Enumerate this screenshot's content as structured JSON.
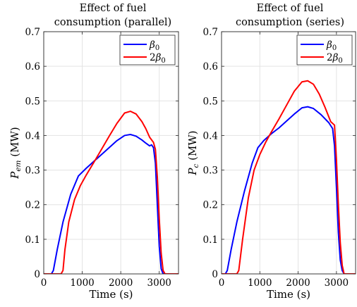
{
  "chart_data": [
    {
      "type": "line",
      "title_lines": [
        "Effect of fuel",
        "consumption (parallel)"
      ],
      "xlabel": "Time (s)",
      "ylabel_main": "P",
      "ylabel_sub": "em",
      "ylabel_unit": " (MW)",
      "xlim": [
        0,
        3500
      ],
      "ylim": [
        0,
        0.7
      ],
      "xticks": [
        0,
        1000,
        2000,
        3000
      ],
      "xtick_labels": [
        "0",
        "1000",
        "2000",
        "3000"
      ],
      "yticks": [
        0,
        0.1,
        0.2,
        0.3,
        0.4,
        0.5,
        0.6,
        0.7
      ],
      "ytick_labels": [
        "0",
        "0.1",
        "0.2",
        "0.3",
        "0.4",
        "0.5",
        "0.6",
        "0.7"
      ],
      "grid": true,
      "legend_position": "top-right",
      "series": [
        {
          "name_main": "β",
          "name_sub": "0",
          "color": "#0000ff",
          "x": [
            0,
            200,
            250,
            350,
            500,
            700,
            900,
            1100,
            1300,
            1500,
            1700,
            1900,
            2100,
            2250,
            2400,
            2550,
            2650,
            2750,
            2800,
            2850,
            2900,
            2950,
            3000,
            3050,
            3100,
            3150,
            3500
          ],
          "y": [
            0,
            0,
            0.01,
            0.07,
            0.15,
            0.23,
            0.283,
            0.305,
            0.325,
            0.345,
            0.365,
            0.385,
            0.4,
            0.403,
            0.398,
            0.387,
            0.378,
            0.37,
            0.373,
            0.365,
            0.32,
            0.2,
            0.08,
            0.015,
            0,
            0,
            0
          ]
        },
        {
          "name_main": "2β",
          "name_sub": "0",
          "color": "#ff0000",
          "x": [
            0,
            450,
            500,
            550,
            650,
            800,
            950,
            1100,
            1300,
            1500,
            1700,
            1900,
            2100,
            2250,
            2400,
            2550,
            2650,
            2750,
            2850,
            2900,
            2950,
            3000,
            3050,
            3100,
            3150,
            3500
          ],
          "y": [
            0,
            0,
            0.01,
            0.07,
            0.15,
            0.215,
            0.255,
            0.285,
            0.322,
            0.36,
            0.398,
            0.435,
            0.465,
            0.47,
            0.462,
            0.44,
            0.42,
            0.395,
            0.38,
            0.36,
            0.28,
            0.16,
            0.06,
            0.01,
            0,
            0
          ]
        }
      ]
    },
    {
      "type": "line",
      "title_lines": [
        "Effect of fuel",
        "consumption (series)"
      ],
      "xlabel": "Time (s)",
      "ylabel_main": "P",
      "ylabel_sub": "c",
      "ylabel_unit": " (MW)",
      "xlim": [
        0,
        3500
      ],
      "ylim": [
        0,
        0.7
      ],
      "xticks": [
        0,
        1000,
        2000,
        3000
      ],
      "xtick_labels": [
        "0",
        "1000",
        "2000",
        "3000"
      ],
      "yticks": [
        0,
        0.1,
        0.2,
        0.3,
        0.4,
        0.5,
        0.6,
        0.7
      ],
      "ytick_labels": [
        "0",
        "0.1",
        "0.2",
        "0.3",
        "0.4",
        "0.5",
        "0.6",
        "0.7"
      ],
      "grid": true,
      "legend_position": "top-right",
      "series": [
        {
          "name_main": "β",
          "name_sub": "0",
          "color": "#0000ff",
          "x": [
            0,
            100,
            150,
            250,
            400,
            600,
            800,
            950,
            1100,
            1300,
            1500,
            1700,
            1900,
            2100,
            2250,
            2400,
            2600,
            2800,
            2900,
            2950,
            3000,
            3050,
            3100,
            3150,
            3200,
            3250,
            3500
          ],
          "y": [
            0,
            0,
            0.01,
            0.07,
            0.15,
            0.24,
            0.32,
            0.365,
            0.385,
            0.405,
            0.422,
            0.442,
            0.462,
            0.48,
            0.483,
            0.478,
            0.46,
            0.437,
            0.42,
            0.37,
            0.25,
            0.12,
            0.04,
            0.01,
            0,
            0,
            0
          ]
        },
        {
          "name_main": "2β",
          "name_sub": "0",
          "color": "#ff0000",
          "x": [
            0,
            400,
            450,
            550,
            700,
            850,
            1000,
            1150,
            1300,
            1500,
            1700,
            1900,
            2100,
            2250,
            2400,
            2550,
            2700,
            2850,
            2950,
            3000,
            3050,
            3100,
            3150,
            3200,
            3250,
            3500
          ],
          "y": [
            0,
            0,
            0.01,
            0.1,
            0.22,
            0.3,
            0.345,
            0.38,
            0.41,
            0.448,
            0.488,
            0.528,
            0.555,
            0.558,
            0.548,
            0.52,
            0.482,
            0.44,
            0.43,
            0.33,
            0.2,
            0.09,
            0.025,
            0,
            0,
            0
          ]
        }
      ]
    }
  ]
}
